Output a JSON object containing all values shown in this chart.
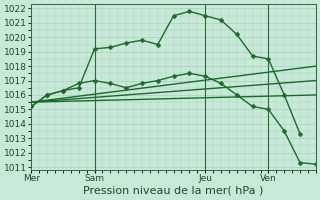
{
  "xlabel": "Pression niveau de la mer( hPa )",
  "background_color": "#c8e8d8",
  "grid_color": "#a8cfc0",
  "line_color": "#1a6b2a",
  "ylim": [
    1011,
    1022
  ],
  "yticks": [
    1011,
    1012,
    1013,
    1014,
    1015,
    1016,
    1017,
    1018,
    1019,
    1020,
    1021,
    1022
  ],
  "day_labels": [
    "Mer",
    "Sam",
    "Jeu",
    "Ven"
  ],
  "day_positions": [
    0,
    8,
    22,
    30
  ],
  "xlim": [
    0,
    36
  ],
  "lines": [
    {
      "x": [
        0,
        2,
        4,
        6,
        8,
        10,
        12,
        14,
        16,
        18,
        20,
        22,
        24,
        26,
        28,
        30,
        32,
        34
      ],
      "y": [
        1015.2,
        1016.0,
        1016.3,
        1016.5,
        1019.2,
        1019.3,
        1019.6,
        1019.8,
        1019.5,
        1021.5,
        1021.8,
        1021.5,
        1021.2,
        1020.2,
        1018.7,
        1018.5,
        1016.0,
        1013.3
      ],
      "marker": "D",
      "markersize": 2.5,
      "linewidth": 1.0,
      "linestyle": "-"
    },
    {
      "x": [
        0,
        36
      ],
      "y": [
        1015.5,
        1018.0
      ],
      "marker": null,
      "markersize": 0,
      "linewidth": 1.0,
      "linestyle": "-"
    },
    {
      "x": [
        0,
        36
      ],
      "y": [
        1015.5,
        1017.0
      ],
      "marker": null,
      "markersize": 0,
      "linewidth": 1.0,
      "linestyle": "-"
    },
    {
      "x": [
        0,
        36
      ],
      "y": [
        1015.5,
        1016.0
      ],
      "marker": null,
      "markersize": 0,
      "linewidth": 1.0,
      "linestyle": "-"
    },
    {
      "x": [
        0,
        2,
        4,
        6,
        8,
        10,
        12,
        14,
        16,
        18,
        20,
        22,
        24,
        26,
        28,
        30,
        32,
        34,
        36
      ],
      "y": [
        1015.2,
        1016.0,
        1016.3,
        1016.8,
        1017.0,
        1016.8,
        1016.5,
        1016.8,
        1017.0,
        1017.3,
        1017.5,
        1017.3,
        1016.8,
        1016.0,
        1015.2,
        1015.0,
        1013.5,
        1011.3,
        1011.2
      ],
      "marker": "D",
      "markersize": 2.5,
      "linewidth": 1.0,
      "linestyle": "-"
    }
  ],
  "vline_positions": [
    8,
    22,
    30
  ],
  "fontsize_xlabel": 8,
  "tick_fontsize": 6.5
}
